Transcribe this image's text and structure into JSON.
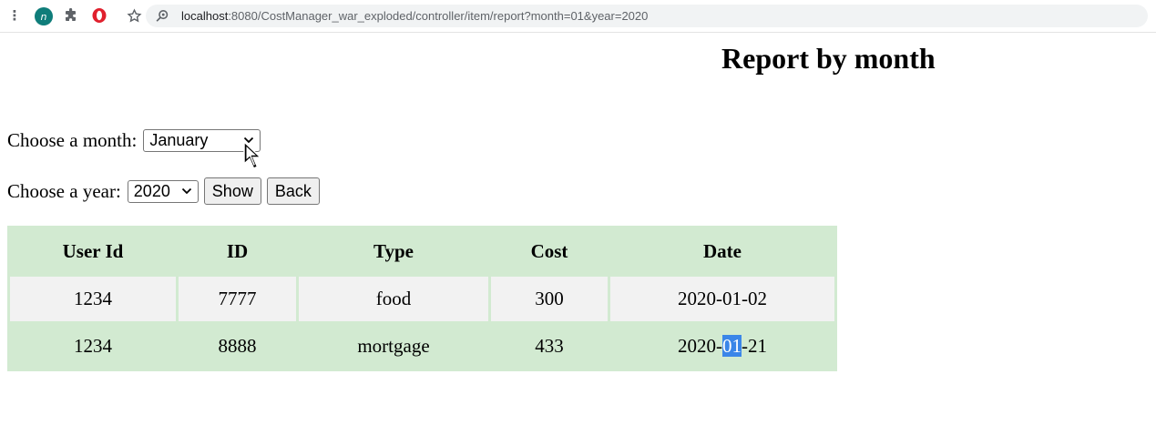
{
  "browser": {
    "profile_initial": "n",
    "url_host": "localhost",
    "url_rest": ":8080/CostManager_war_exploded/controller/item/report?month=01&year=2020"
  },
  "page": {
    "title": "Report by month",
    "month_label": "Choose a month:",
    "month_selected": "January",
    "year_label": "Choose a year:",
    "year_selected": "2020",
    "show_button": "Show",
    "back_button": "Back"
  },
  "table": {
    "headers": [
      "User Id",
      "ID",
      "Type",
      "Cost",
      "Date"
    ],
    "rows": [
      [
        "1234",
        "7777",
        "food",
        "300",
        "2020-01-02"
      ],
      [
        "1234",
        "8888",
        "mortgage",
        "433",
        "2020-01-21"
      ]
    ],
    "highlight": {
      "row": 1,
      "prefix": "2020-",
      "selected": "01",
      "suffix": "-21"
    }
  },
  "colors": {
    "table_green": "#d2ead1",
    "row_gray": "#f2f2f2",
    "selection_blue": "#3b86e8"
  },
  "icons": [
    "kebab-menu-icon",
    "profile-icon",
    "puzzle-extension-icon",
    "opera-icon",
    "bookmark-star-icon",
    "search-icon",
    "chevron-down-icon",
    "mouse-cursor-icon"
  ]
}
